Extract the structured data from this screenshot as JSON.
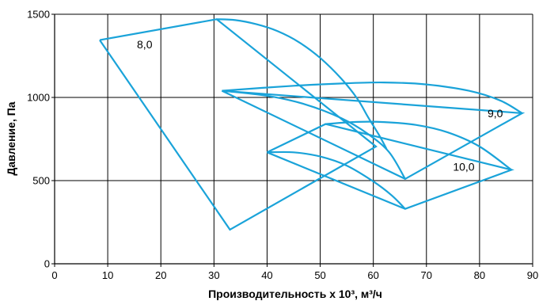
{
  "chart_data": {
    "type": "line",
    "title": "",
    "xlabel": "Производительность x 10³, м³/ч",
    "ylabel": "Давление, Па",
    "xlim": [
      0,
      90
    ],
    "ylim": [
      0,
      1500
    ],
    "xticks": [
      "0",
      "10",
      "20",
      "30",
      "40",
      "50",
      "60",
      "70",
      "80",
      "90"
    ],
    "yticks": [
      "0",
      "500",
      "1000",
      "1500"
    ],
    "grid": true,
    "line_color": "#1aa3d9",
    "series": [
      {
        "label": "8,0",
        "label_at": [
          15.5,
          1295
        ],
        "boundary": [
          [
            8.5,
            1345
          ],
          [
            30.5,
            1470
          ],
          [
            60.5,
            705
          ],
          [
            33,
            205
          ],
          [
            8.5,
            1345
          ]
        ],
        "curves": [
          [
            [
              30.5,
              1470
            ],
            [
              34,
              1465
            ],
            [
              38,
              1440
            ],
            [
              42,
              1398
            ],
            [
              46,
              1332
            ],
            [
              50,
              1237
            ],
            [
              54,
              1112
            ],
            [
              57,
              992
            ],
            [
              59,
              882
            ],
            [
              61,
              778
            ],
            [
              62.5,
              690
            ]
          ]
        ]
      },
      {
        "label": "9,0",
        "label_at": [
          81.5,
          880
        ],
        "boundary": [
          [
            31.5,
            1040
          ],
          [
            88,
            905
          ],
          [
            66,
            510
          ],
          [
            31.5,
            1040
          ]
        ],
        "curves": [
          [
            [
              31.5,
              1040
            ],
            [
              40,
              1010
            ],
            [
              47,
              960
            ],
            [
              54,
              875
            ],
            [
              59,
              780
            ],
            [
              63,
              670
            ],
            [
              66,
              510
            ]
          ],
          [
            [
              31.5,
              1040
            ],
            [
              45,
              1070
            ],
            [
              55,
              1085
            ],
            [
              62,
              1090
            ],
            [
              70,
              1078
            ],
            [
              78,
              1040
            ],
            [
              84,
              980
            ],
            [
              88,
              905
            ]
          ]
        ]
      },
      {
        "label": "10,0",
        "label_at": [
          75,
          560
        ],
        "boundary": [
          [
            40,
            670
          ],
          [
            51,
            840
          ],
          [
            86,
            565
          ],
          [
            66,
            330
          ],
          [
            40,
            670
          ]
        ],
        "curves": [
          [
            [
              40,
              670
            ],
            [
              45,
              670
            ],
            [
              50,
              645
            ],
            [
              55,
              590
            ],
            [
              60,
              495
            ],
            [
              63.5,
              410
            ],
            [
              66,
              330
            ]
          ],
          [
            [
              51,
              840
            ],
            [
              57,
              853
            ],
            [
              62,
              852
            ],
            [
              68,
              835
            ],
            [
              74,
              790
            ],
            [
              80,
              705
            ],
            [
              86,
              565
            ]
          ]
        ]
      }
    ]
  }
}
